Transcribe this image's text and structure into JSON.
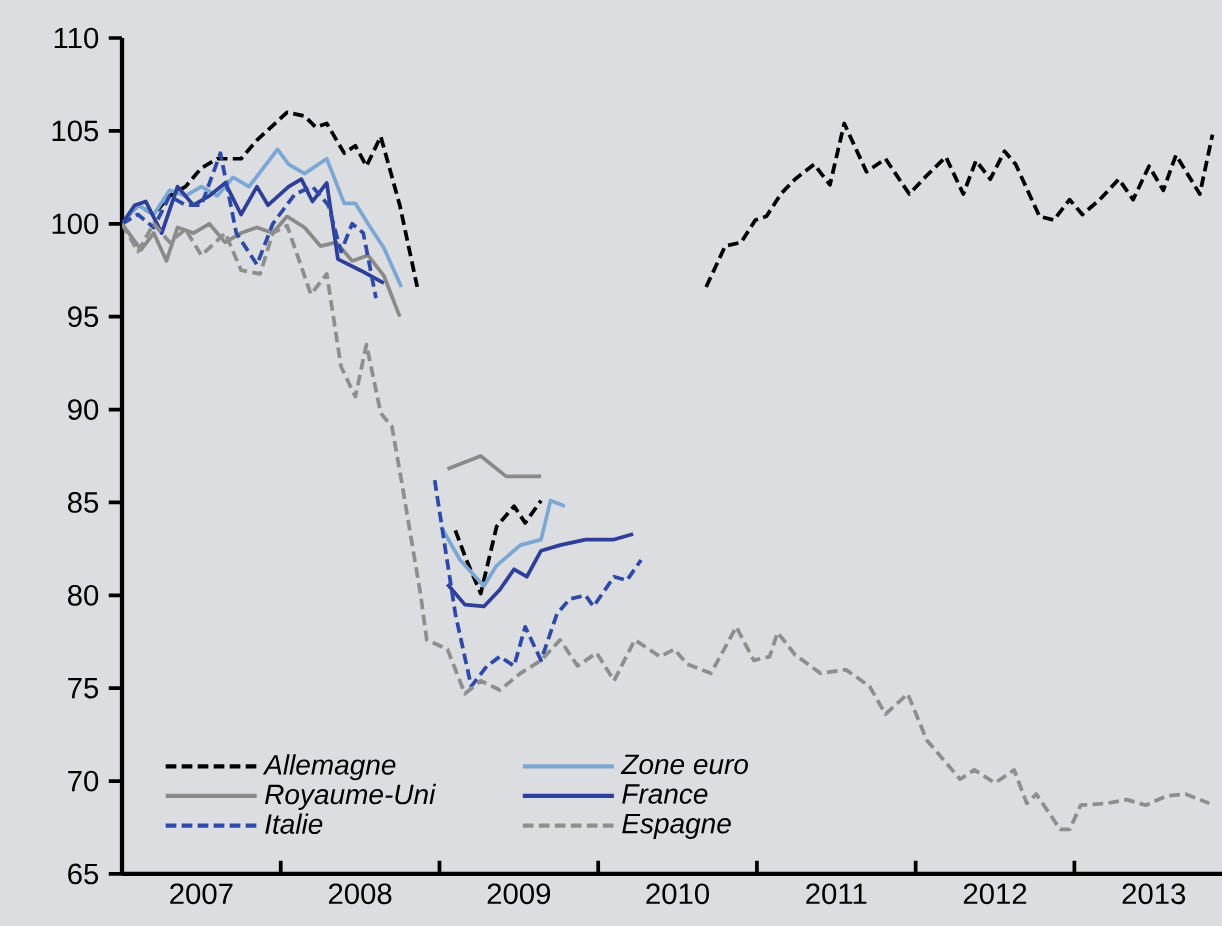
{
  "chart_data": {
    "type": "line",
    "xlim": [
      2007,
      2013.93
    ],
    "ylim": [
      65,
      110
    ],
    "yticks": [
      65,
      70,
      75,
      80,
      85,
      90,
      95,
      100,
      105,
      110
    ],
    "xticks": [
      {
        "value": 2007,
        "label": null
      },
      {
        "value": 2008,
        "label": null
      },
      {
        "value": 2009,
        "label": null
      },
      {
        "value": 2010,
        "label": null
      },
      {
        "value": 2011,
        "label": null
      },
      {
        "value": 2012,
        "label": null
      },
      {
        "value": 2013,
        "label": null
      },
      {
        "value": 2007.5,
        "label": "2007"
      },
      {
        "value": 2008.5,
        "label": "2008"
      },
      {
        "value": 2009.5,
        "label": "2009"
      },
      {
        "value": 2010.5,
        "label": "2010"
      },
      {
        "value": 2011.5,
        "label": "2011"
      },
      {
        "value": 2012.5,
        "label": "2012"
      },
      {
        "value": 2013.5,
        "label": "2013"
      }
    ],
    "grid": false,
    "legend": "bottom left",
    "marker": "none",
    "series": [
      {
        "name": "Allemagne",
        "color": "#000000",
        "line_style": "dashed",
        "x": [
          2007,
          2007.1,
          2007.2,
          2007.3,
          2007.4,
          2007.5,
          2007.6,
          2007.75,
          2007.85,
          2008.04,
          2008.15,
          2008.22,
          2008.29,
          2008.4,
          2008.47,
          2008.54,
          2008.63,
          2008.75,
          2008.86,
          2008.97,
          2009.1,
          2009.17,
          2009.26,
          2009.36,
          2009.47,
          2009.54,
          2009.64,
          2010.2,
          2010.68,
          2010.8,
          2010.9,
          2010.99,
          2011.06,
          2011.15,
          2011.24,
          2011.36,
          2011.46,
          2011.55,
          2011.69,
          2011.81,
          2011.96,
          2012.07,
          2012.19,
          2012.3,
          2012.38,
          2012.47,
          2012.56,
          2012.63,
          2012.78,
          2012.87,
          2012.97,
          2013.05,
          2013.16,
          2013.28,
          2013.37,
          2013.47,
          2013.56,
          2013.64,
          2013.79,
          2013.87
        ],
        "values": [
          100,
          101,
          100.5,
          101.5,
          102,
          103,
          103.5,
          103.5,
          104.5,
          106,
          105.8,
          105.2,
          105.4,
          103.8,
          104.2,
          103.1,
          104.7,
          101,
          96.6,
          null,
          83.5,
          81.9,
          80.1,
          83.7,
          84.8,
          83.9,
          85.1,
          null,
          96.6,
          98.8,
          99,
          100.2,
          100.4,
          101.6,
          102.4,
          103.2,
          102.1,
          105.4,
          102.8,
          103.5,
          101.6,
          102.6,
          103.6,
          101.6,
          103.4,
          102.4,
          103.9,
          103.2,
          100.4,
          100.2,
          101.3,
          100.5,
          101.3,
          102.4,
          101.3,
          103.1,
          101.8,
          103.7,
          101.6,
          104.8
        ]
      },
      {
        "name": "Zone euro",
        "color": "#7ba7d4",
        "line_style": "solid",
        "x": [
          2007,
          2007.1,
          2007.2,
          2007.3,
          2007.4,
          2007.5,
          2007.6,
          2007.7,
          2007.8,
          2007.98,
          2008.05,
          2008.15,
          2008.29,
          2008.4,
          2008.47,
          2008.55,
          2008.65,
          2008.76,
          2008.88,
          2009.01,
          2009.13,
          2009.28,
          2009.36,
          2009.51,
          2009.64,
          2009.7,
          2009.79
        ],
        "values": [
          100,
          101,
          100.5,
          101.8,
          101.5,
          102,
          101.5,
          102.5,
          102,
          104,
          103.2,
          102.7,
          103.5,
          101.1,
          101.1,
          100,
          98.7,
          96.6,
          null,
          83.7,
          81.9,
          80.5,
          81.6,
          82.7,
          83,
          85.1,
          84.8
        ]
      },
      {
        "name": "Royaume-Uni",
        "color": "#8a8a8a",
        "line_style": "solid",
        "x": [
          2007,
          2007.12,
          2007.2,
          2007.28,
          2007.35,
          2007.45,
          2007.55,
          2007.65,
          2007.75,
          2007.85,
          2007.95,
          2008.04,
          2008.15,
          2008.25,
          2008.35,
          2008.45,
          2008.55,
          2008.65,
          2008.75,
          2008.9,
          2009.05,
          2009.26,
          2009.42,
          2009.64
        ],
        "values": [
          100,
          98.6,
          99.5,
          98,
          99.8,
          99.5,
          100,
          99,
          99.5,
          99.8,
          99.5,
          100.4,
          99.8,
          98.8,
          99,
          98,
          98.3,
          97.2,
          95,
          null,
          86.8,
          87.5,
          86.4,
          86.4
        ]
      },
      {
        "name": "France",
        "color": "#2e3f99",
        "line_style": "solid",
        "x": [
          2007,
          2007.08,
          2007.15,
          2007.25,
          2007.35,
          2007.45,
          2007.55,
          2007.65,
          2007.75,
          2007.85,
          2007.92,
          2008.05,
          2008.13,
          2008.2,
          2008.29,
          2008.36,
          2008.5,
          2008.65,
          2008.85,
          2009.05,
          2009.16,
          2009.28,
          2009.38,
          2009.47,
          2009.55,
          2009.64,
          2009.76,
          2009.92,
          2010.1,
          2010.22
        ],
        "values": [
          100,
          101,
          101.2,
          99.5,
          102,
          101,
          101.5,
          102.2,
          100.5,
          102,
          101,
          102,
          102.4,
          101.2,
          102.2,
          98.1,
          97.5,
          96.8,
          null,
          80.6,
          79.5,
          79.4,
          80.3,
          81.4,
          81,
          82.4,
          82.7,
          83,
          83,
          83.3
        ]
      },
      {
        "name": "Italie",
        "color": "#2e4aa8",
        "line_style": "dashed",
        "x": [
          2007,
          2007.1,
          2007.2,
          2007.3,
          2007.4,
          2007.5,
          2007.62,
          2007.72,
          2007.85,
          2007.95,
          2008.09,
          2008.2,
          2008.3,
          2008.38,
          2008.45,
          2008.52,
          2008.6,
          2008.8,
          2008.97,
          2009.1,
          2009.2,
          2009.3,
          2009.38,
          2009.47,
          2009.54,
          2009.64,
          2009.74,
          2009.82,
          2009.92,
          2009.97,
          2010.1,
          2010.18,
          2010.27
        ],
        "values": [
          100,
          100.5,
          99.8,
          101.5,
          101,
          101,
          103.8,
          99.5,
          97.8,
          100,
          101.6,
          102,
          101,
          98.5,
          100,
          99.5,
          96,
          null,
          86.2,
          79,
          75.1,
          76.2,
          76.7,
          76.2,
          78.3,
          76.5,
          79,
          79.8,
          80,
          79.4,
          81,
          80.8,
          81.9
        ]
      },
      {
        "name": "Espagne",
        "color": "#8e8e8e",
        "line_style": "dashed",
        "x": [
          2007,
          2007.1,
          2007.2,
          2007.3,
          2007.4,
          2007.5,
          2007.65,
          2007.75,
          2007.87,
          2007.95,
          2008.04,
          2008.19,
          2008.29,
          2008.38,
          2008.47,
          2008.54,
          2008.63,
          2008.7,
          2008.76,
          2008.88,
          2008.92,
          2009.05,
          2009.16,
          2009.26,
          2009.38,
          2009.51,
          2009.64,
          2009.76,
          2009.87,
          2009.99,
          2010.1,
          2010.23,
          2010.39,
          2010.48,
          2010.56,
          2010.71,
          2010.87,
          2010.98,
          2011.08,
          2011.13,
          2011.24,
          2011.4,
          2011.56,
          2011.71,
          2011.81,
          2011.95,
          2012.07,
          2012.28,
          2012.37,
          2012.5,
          2012.62,
          2012.7,
          2012.76,
          2012.91,
          2012.97,
          2013.04,
          2013.2,
          2013.33,
          2013.45,
          2013.58,
          2013.7,
          2013.85
        ],
        "values": [
          100,
          98.5,
          100,
          99,
          99.7,
          98.3,
          99.5,
          97.5,
          97.3,
          99.5,
          99.9,
          96.2,
          97.3,
          92.3,
          90.7,
          93.5,
          89.8,
          89.1,
          86.2,
          80.1,
          77.6,
          77.1,
          74.7,
          75.4,
          74.9,
          75.8,
          76.5,
          77.6,
          76.2,
          76.9,
          75.4,
          77.6,
          76.7,
          77.1,
          76.3,
          75.8,
          78.3,
          76.5,
          76.7,
          78,
          76.8,
          75.8,
          76,
          75.1,
          73.6,
          74.7,
          72.2,
          70.1,
          70.6,
          69.9,
          70.6,
          68.8,
          69.3,
          67.4,
          67.4,
          68.7,
          68.8,
          69,
          68.7,
          69.2,
          69.3,
          68.8
        ]
      }
    ]
  }
}
